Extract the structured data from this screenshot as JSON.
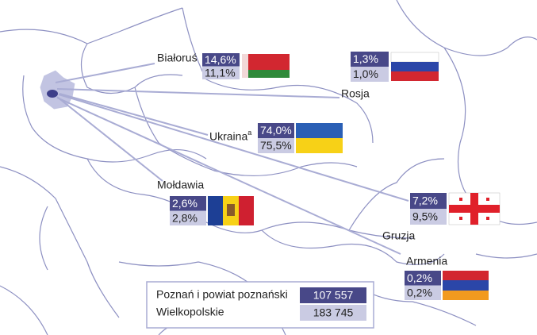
{
  "countries": [
    {
      "name": "Białoruś",
      "poznan": "14,6%",
      "wielkopolskie": "11,1%"
    },
    {
      "name": "Rosja",
      "poznan": "1,3%",
      "wielkopolskie": "1,0%"
    },
    {
      "name": "Ukraina",
      "note": "a",
      "poznan": "74,0%",
      "wielkopolskie": "75,5%"
    },
    {
      "name": "Mołdawia",
      "poznan": "2,6%",
      "wielkopolskie": "2,8%"
    },
    {
      "name": "Gruzja",
      "poznan": "7,2%",
      "wielkopolskie": "9,5%"
    },
    {
      "name": "Armenia",
      "poznan": "0,2%",
      "wielkopolskie": "0,2%"
    }
  ],
  "legend": {
    "rows": [
      {
        "label": "Poznań i powiat poznański",
        "value": "107 557"
      },
      {
        "label": "Wielkopolskie",
        "value": "183 745"
      }
    ]
  }
}
